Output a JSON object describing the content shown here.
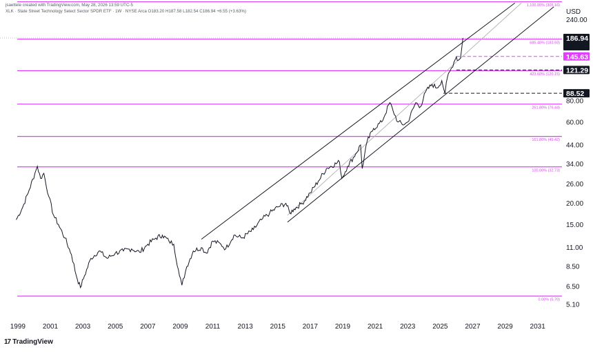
{
  "header": {
    "line1": "jsaettele created with TradingView.com, May 28, 2026 13:59 UTC-5",
    "line2": "XLK · State Street Technology Select Sector SPDR ETF · 1W · NYSE Arca   O183.20  H187.58  L182.54  C186.94  +6.55 (+3.63%)"
  },
  "branding": {
    "logo_text": "TradingView",
    "logo_mark": "17"
  },
  "colors": {
    "price": "#131722",
    "fib": "#e040fb",
    "channel": "#131722",
    "midline": "#b0b0b0",
    "dashed_black": "#131722",
    "dashed_magenta": "#e040fb"
  },
  "chart_data": {
    "type": "line",
    "currency": "USD",
    "scale": "log",
    "ylim": [
      4.6,
      290
    ],
    "xlim": [
      1998.75,
      2032.5
    ],
    "x_ticks": [
      "1999",
      "2001",
      "2003",
      "2005",
      "2007",
      "2009",
      "2011",
      "2013",
      "2015",
      "2017",
      "2019",
      "2021",
      "2023",
      "2025",
      "2027",
      "2029",
      "2031"
    ],
    "y_ticks": [
      "240.00",
      "186.94",
      "145.63",
      "121.29",
      "88.52",
      "80.00",
      "60.00",
      "44.00",
      "34.00",
      "26.00",
      "20.00",
      "15.00",
      "11.00",
      "8.50",
      "6.50",
      "5.10"
    ],
    "series": [
      {
        "points": [
          [
            1998.9,
            16
          ],
          [
            1999.3,
            19
          ],
          [
            1999.7,
            24
          ],
          [
            2000.05,
            30
          ],
          [
            2000.2,
            33
          ],
          [
            2000.4,
            28
          ],
          [
            2000.6,
            30
          ],
          [
            2000.9,
            22
          ],
          [
            2001.2,
            17
          ],
          [
            2001.5,
            15
          ],
          [
            2001.9,
            12.5
          ],
          [
            2002.3,
            10
          ],
          [
            2002.6,
            7.5
          ],
          [
            2002.85,
            6.4
          ],
          [
            2003.1,
            7.5
          ],
          [
            2003.5,
            9.5
          ],
          [
            2004.0,
            10.5
          ],
          [
            2004.5,
            9.5
          ],
          [
            2005.0,
            10.2
          ],
          [
            2005.5,
            10.5
          ],
          [
            2006.0,
            10.8
          ],
          [
            2006.5,
            10.3
          ],
          [
            2007.0,
            11.5
          ],
          [
            2007.5,
            12.5
          ],
          [
            2007.9,
            13
          ],
          [
            2008.3,
            12
          ],
          [
            2008.6,
            11.5
          ],
          [
            2008.95,
            7.5
          ],
          [
            2009.1,
            6.6
          ],
          [
            2009.4,
            8.5
          ],
          [
            2009.8,
            10.5
          ],
          [
            2010.3,
            11
          ],
          [
            2010.6,
            10.2
          ],
          [
            2011.0,
            12
          ],
          [
            2011.5,
            11.5
          ],
          [
            2011.8,
            10.8
          ],
          [
            2012.3,
            13
          ],
          [
            2012.8,
            12.5
          ],
          [
            2013.5,
            14
          ],
          [
            2014.0,
            16
          ],
          [
            2014.5,
            17.5
          ],
          [
            2015.0,
            19
          ],
          [
            2015.5,
            20
          ],
          [
            2015.75,
            17.5
          ],
          [
            2016.0,
            18.5
          ],
          [
            2016.5,
            20
          ],
          [
            2017.0,
            23
          ],
          [
            2017.5,
            27
          ],
          [
            2018.0,
            32
          ],
          [
            2018.8,
            35
          ],
          [
            2018.95,
            28
          ],
          [
            2019.3,
            33
          ],
          [
            2019.8,
            39
          ],
          [
            2020.1,
            44
          ],
          [
            2020.2,
            32
          ],
          [
            2020.5,
            46
          ],
          [
            2020.9,
            55
          ],
          [
            2021.4,
            60
          ],
          [
            2021.9,
            78
          ],
          [
            2022.1,
            70
          ],
          [
            2022.4,
            60
          ],
          [
            2022.8,
            58
          ],
          [
            2023.0,
            60
          ],
          [
            2023.5,
            78
          ],
          [
            2023.8,
            74
          ],
          [
            2024.1,
            90
          ],
          [
            2024.5,
            100
          ],
          [
            2024.8,
            95
          ],
          [
            2025.1,
            105
          ],
          [
            2025.3,
            88.52
          ],
          [
            2025.45,
            110
          ],
          [
            2025.7,
            125
          ],
          [
            2025.85,
            135
          ],
          [
            2026.0,
            145
          ],
          [
            2026.1,
            138
          ],
          [
            2026.25,
            142
          ],
          [
            2026.4,
            186.94
          ]
        ]
      }
    ],
    "fib_levels": [
      {
        "label": "1,100.00% (305.16)",
        "value": 305.16
      },
      {
        "label": "685.40% (183.93)",
        "value": 183.93
      },
      {
        "label": "423.60% (120.15)",
        "value": 120.15
      },
      {
        "label": "261.80% (76.44)",
        "value": 76.44
      },
      {
        "label": "161.80% (49.42)",
        "value": 49.42
      },
      {
        "label": "100.00% (32.73)",
        "value": 32.73
      },
      {
        "label": "0.00% (5.70)",
        "value": 5.7
      }
    ],
    "horizontal_lines": [
      {
        "value": 145.63,
        "style": "dashed",
        "color": "magenta"
      },
      {
        "value": 121.29,
        "style": "dashed",
        "color": "black"
      },
      {
        "value": 88.52,
        "style": "dashed",
        "color": "black"
      }
    ],
    "channel": {
      "upper": [
        [
          2010.3,
          12.3
        ],
        [
          2029.6,
          300
        ]
      ],
      "lower": [
        [
          2015.6,
          15.5
        ],
        [
          2032.0,
          285
        ]
      ],
      "middle": [
        [
          2015.6,
          17
        ],
        [
          2030.0,
          300
        ]
      ]
    },
    "price_tags": [
      {
        "value": 186.94,
        "text": "186.94",
        "sub": "1d 2h",
        "bg": "#131722",
        "fg": "#ffffff"
      },
      {
        "value": 145.63,
        "text": "145.63",
        "sub": "",
        "bg": "#e040fb",
        "fg": "#ffffff"
      },
      {
        "value": 121.29,
        "text": "121.29",
        "sub": "",
        "bg": "#131722",
        "fg": "#ffffff"
      },
      {
        "value": 88.52,
        "text": "88.52",
        "sub": "",
        "bg": "#131722",
        "fg": "#ffffff"
      }
    ]
  }
}
